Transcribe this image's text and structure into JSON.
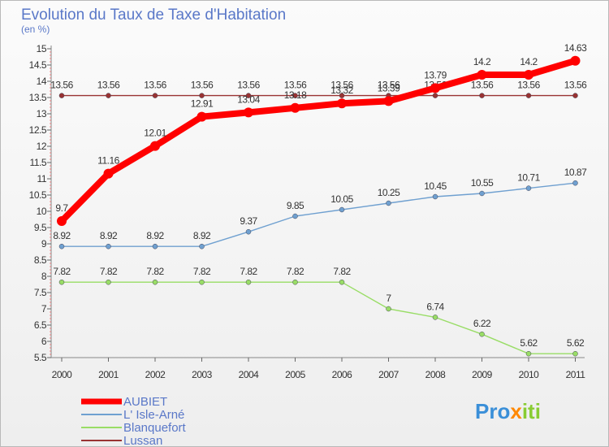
{
  "chart_data": {
    "type": "line",
    "title": "Evolution du Taux de Taxe d'Habitation",
    "subtitle": "(en %)",
    "categories": [
      "2000",
      "2001",
      "2002",
      "2003",
      "2004",
      "2005",
      "2006",
      "2007",
      "2008",
      "2009",
      "2010",
      "2011"
    ],
    "yticks": [
      "5.5",
      "6",
      "6.5",
      "7",
      "7.5",
      "8",
      "8.5",
      "9",
      "9.5",
      "10",
      "10.5",
      "11",
      "11.5",
      "12",
      "12.5",
      "13",
      "13.5",
      "14",
      "14.5",
      "15"
    ],
    "ylim": [
      5.5,
      15
    ],
    "grid": false,
    "legend_position": "bottom-left",
    "series": [
      {
        "name": "AUBIET",
        "color": "#ff0000",
        "values": [
          9.7,
          11.16,
          12.01,
          12.91,
          13.04,
          13.18,
          13.32,
          13.39,
          13.79,
          14.2,
          14.2,
          14.63
        ],
        "labels": [
          "9.7",
          "11.16",
          "12.01",
          "12.91",
          "13.04",
          "13.18",
          "13.32",
          "13.39",
          "13.79",
          "14.2",
          "14.2",
          "14.63"
        ]
      },
      {
        "name": "L' Isle-Arné",
        "color": "#6fa0d0",
        "values": [
          8.92,
          8.92,
          8.92,
          8.92,
          9.37,
          9.85,
          10.05,
          10.25,
          10.45,
          10.55,
          10.71,
          10.87
        ],
        "labels": [
          "8.92",
          "8.92",
          "8.92",
          "8.92",
          "9.37",
          "9.85",
          "10.05",
          "10.25",
          "10.45",
          "10.55",
          "10.71",
          "10.87"
        ]
      },
      {
        "name": "Blanquefort",
        "color": "#99dd66",
        "values": [
          7.82,
          7.82,
          7.82,
          7.82,
          7.82,
          7.82,
          7.82,
          7.0,
          6.74,
          6.22,
          5.62,
          5.62
        ],
        "labels": [
          "7.82",
          "7.82",
          "7.82",
          "7.82",
          "7.82",
          "7.82",
          "7.82",
          "7",
          "6.74",
          "6.22",
          "5.62",
          "5.62"
        ]
      },
      {
        "name": "Lussan",
        "color": "#993333",
        "values": [
          13.56,
          13.56,
          13.56,
          13.56,
          13.56,
          13.56,
          13.56,
          13.56,
          13.56,
          13.56,
          13.56,
          13.56
        ],
        "labels": [
          "13.56",
          "13.56",
          "13.56",
          "13.56",
          "13.56",
          "13.56",
          "13.56",
          "13.56",
          "13.56",
          "13.56",
          "13.56",
          "13.56"
        ]
      }
    ]
  },
  "logo": {
    "text": "Proxiti"
  }
}
